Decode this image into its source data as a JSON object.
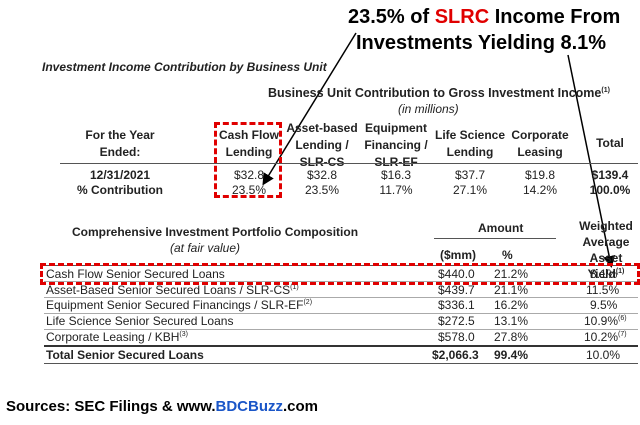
{
  "headline": {
    "line1_prefix": "23.5% of ",
    "line1_highlight": "SLRC",
    "line1_suffix": " Income From",
    "line2": "Investments Yielding 8.1%",
    "highlight_color": "#e00000"
  },
  "section1": {
    "title": "Investment Income Contribution by Business Unit",
    "table_title": "Business Unit Contribution to Gross Investment Income",
    "table_title_sup": "(1)",
    "subtitle": "(in millions)",
    "col_first": [
      "For the Year",
      "Ended:"
    ],
    "columns": [
      [
        "Cash Flow",
        "Lending"
      ],
      [
        "Asset-based",
        "Lending /",
        "SLR-CS"
      ],
      [
        "Equipment",
        "Financing /",
        "SLR-EF"
      ],
      [
        "Life Science",
        "Lending"
      ],
      [
        "Corporate",
        "Leasing"
      ],
      [
        "Total"
      ]
    ],
    "row1_label": "12/31/2021",
    "row1_values": [
      "$32.8",
      "$32.8",
      "$16.3",
      "$37.7",
      "$19.8",
      "$139.4"
    ],
    "row2_label": "% Contribution",
    "row2_values": [
      "23.5%",
      "23.5%",
      "11.7%",
      "27.1%",
      "14.2%",
      "100.0%"
    ]
  },
  "section2": {
    "title": "Comprehensive Investment Portfolio Composition",
    "subtitle": "(at fair value)",
    "amount_header": "Amount",
    "col_mm": "($mm)",
    "col_pct": "%",
    "col_yield": [
      "Weighted",
      "Average",
      "Asset Yield"
    ],
    "col_yield_sup": "(1)",
    "rows": [
      {
        "label": "Cash Flow Senior Secured Loans",
        "sup": "",
        "amount": "$440.0",
        "pct": "21.2%",
        "yield": "8.1%",
        "yield_sup": ""
      },
      {
        "label": "Asset-Based Senior Secured Loans / SLR-CS",
        "sup": "(1)",
        "amount": "$439.7",
        "pct": "21.1%",
        "yield": "11.5%",
        "yield_sup": ""
      },
      {
        "label": "Equipment Senior Secured Financings / SLR-EF",
        "sup": "(2)",
        "amount": "$336.1",
        "pct": "16.2%",
        "yield": "9.5%",
        "yield_sup": ""
      },
      {
        "label": "Life Science Senior Secured Loans",
        "sup": "",
        "amount": "$272.5",
        "pct": "13.1%",
        "yield": "10.9%",
        "yield_sup": "(6)"
      },
      {
        "label": "Corporate Leasing / KBH",
        "sup": "(3)",
        "amount": "$578.0",
        "pct": "27.8%",
        "yield": "10.2%",
        "yield_sup": "(7)"
      }
    ],
    "total": {
      "label": "Total Senior Secured Loans",
      "amount": "$2,066.3",
      "pct": "99.4%",
      "yield": "10.0%"
    }
  },
  "source": {
    "prefix": "Sources: SEC Filings & www.",
    "highlight": "BDCBuzz",
    "suffix": ".com",
    "highlight_color": "#1a56c8"
  }
}
